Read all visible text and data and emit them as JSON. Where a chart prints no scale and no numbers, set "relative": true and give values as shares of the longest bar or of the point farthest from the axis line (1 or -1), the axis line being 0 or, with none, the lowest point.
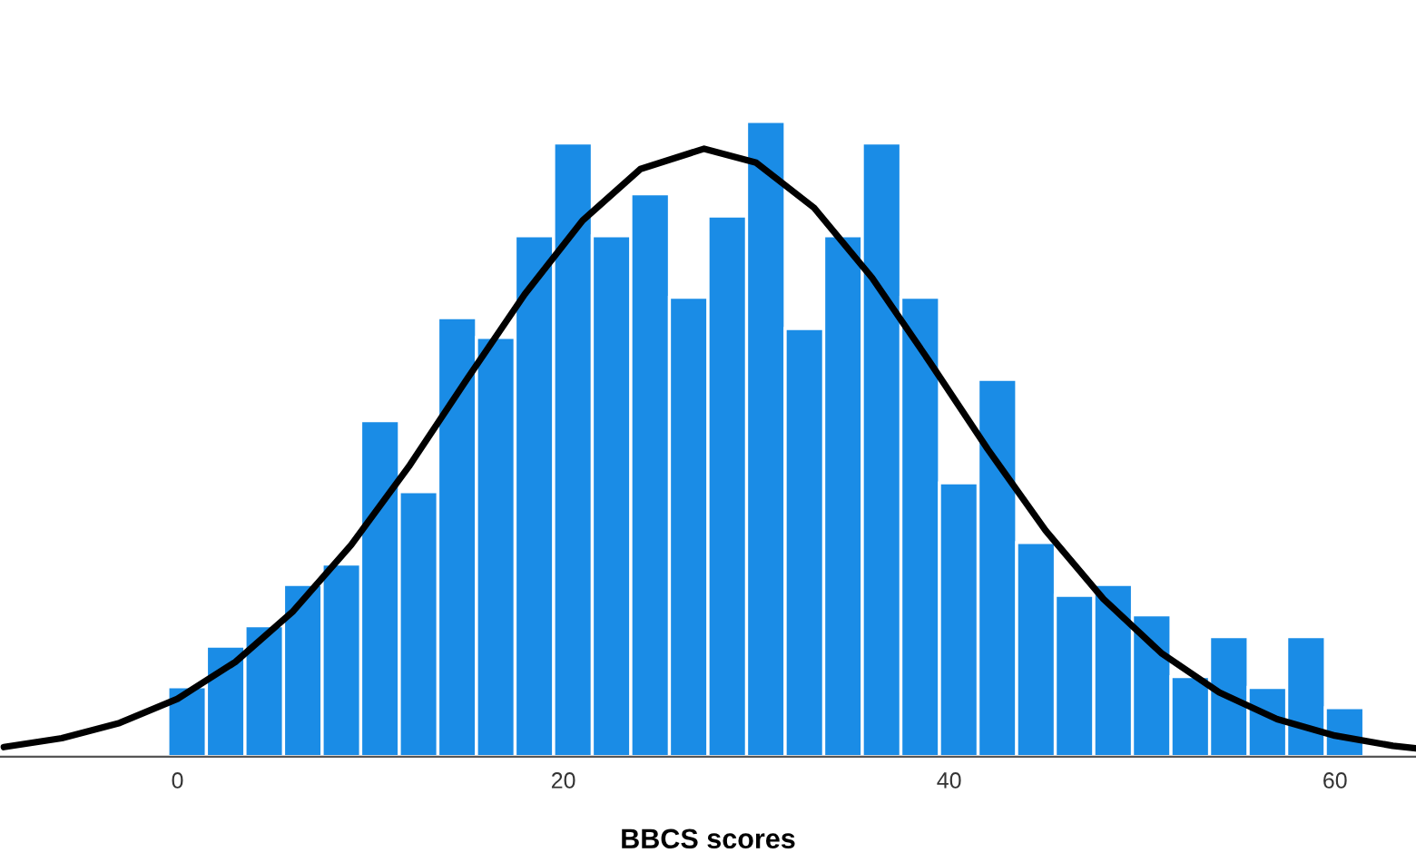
{
  "chart_data": {
    "type": "histogram",
    "xlabel": "BBCS scores",
    "relative": true,
    "bins": [
      -0.5,
      1.5,
      3.5,
      5.5,
      7.5,
      9.5,
      11.5,
      13.5,
      15.5,
      17.5,
      19.5,
      21.5,
      23.5,
      25.5,
      27.5,
      29.5,
      31.5,
      33.5,
      35.5,
      37.5,
      39.5,
      41.5,
      43.5,
      45.5,
      47.5,
      49.5,
      51.5,
      53.5,
      55.5,
      57.5,
      59.5,
      61.5
    ],
    "series": [
      {
        "color": "#1a8ce6",
        "values": [
          0.11,
          0.174,
          0.206,
          0.271,
          0.303,
          0.529,
          0.417,
          0.691,
          0.66,
          0.82,
          0.966,
          0.82,
          0.886,
          0.723,
          0.851,
          1.0,
          0.674,
          0.82,
          0.966,
          0.723,
          0.431,
          0.594,
          0.337,
          0.254,
          0.271,
          0.223,
          0.126,
          0.189,
          0.109,
          0.189,
          0.077
        ]
      },
      {
        "type": "line",
        "color": "#000000",
        "x": [
          -9,
          -6,
          -3,
          0,
          3,
          6,
          9,
          12,
          15,
          18,
          21,
          24,
          27.3,
          30,
          33,
          36,
          39,
          42,
          45,
          48,
          51,
          54,
          57,
          60,
          63,
          64.2
        ],
        "values": [
          0.015,
          0.029,
          0.053,
          0.091,
          0.149,
          0.229,
          0.333,
          0.457,
          0.594,
          0.728,
          0.844,
          0.925,
          0.957,
          0.935,
          0.864,
          0.754,
          0.621,
          0.484,
          0.356,
          0.248,
          0.163,
          0.101,
          0.059,
          0.033,
          0.017,
          0.013
        ]
      }
    ],
    "xlim": [
      -9.2,
      64.2
    ],
    "xticks": [
      0,
      20,
      40,
      60
    ],
    "grid": false,
    "legend": false,
    "marker": "none",
    "line_style": "solid"
  }
}
